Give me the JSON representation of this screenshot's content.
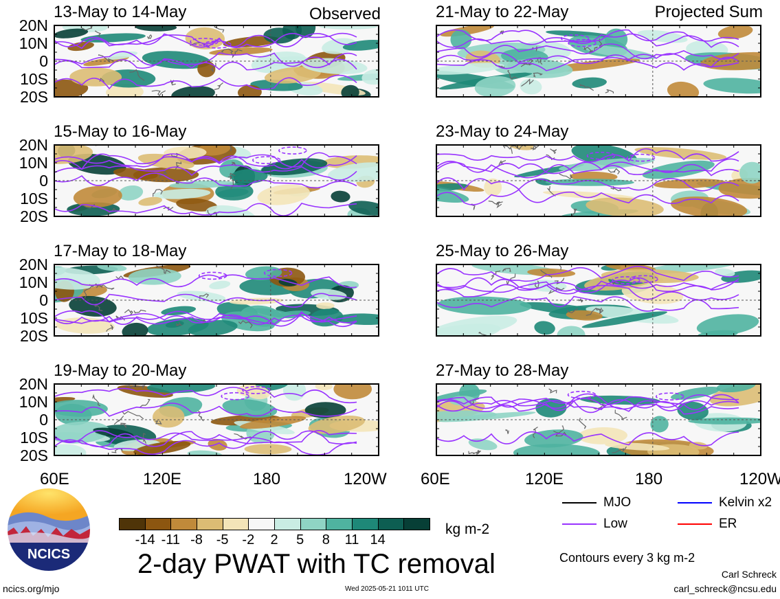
{
  "panels": [
    {
      "title": "13-May to 14-May",
      "tag": "Observed",
      "seed": 3
    },
    {
      "title": "15-May to 16-May",
      "tag": "",
      "seed": 7
    },
    {
      "title": "17-May to 18-May",
      "tag": "",
      "seed": 11
    },
    {
      "title": "19-May to 20-May",
      "tag": "",
      "seed": 17
    },
    {
      "title": "21-May to 22-May",
      "tag": "Projected Sum",
      "seed": 23
    },
    {
      "title": "23-May to 24-May",
      "tag": "",
      "seed": 29
    },
    {
      "title": "25-May to 26-May",
      "tag": "",
      "seed": 31
    },
    {
      "title": "27-May to 28-May",
      "tag": "",
      "seed": 37
    }
  ],
  "lat_labels": [
    "20N",
    "10N",
    "0",
    "10S",
    "20S"
  ],
  "lon_labels": [
    "60E",
    "120E",
    "180",
    "120W"
  ],
  "colorbar": {
    "colors": [
      "#4f3408",
      "#8c5610",
      "#c08a3a",
      "#dcbc74",
      "#f3e4b8",
      "#f7f7f7",
      "#c9ece3",
      "#8fd4c4",
      "#4fb3a0",
      "#1e8878",
      "#0d5e52",
      "#073f36"
    ],
    "labels": [
      "-14",
      "-11",
      "-8",
      "-5",
      "-2",
      "2",
      "5",
      "8",
      "11",
      "14"
    ],
    "units": "kg m-2"
  },
  "main_title": "2-day PWAT with TC removal",
  "logo_text": "NCICS",
  "legend": {
    "items": [
      {
        "label": "MJO",
        "color": "#000000"
      },
      {
        "label": "Kelvin x2",
        "color": "#0000ff"
      },
      {
        "label": "Low",
        "color": "#9933ff"
      },
      {
        "label": "ER",
        "color": "#ff0000"
      }
    ],
    "contours_note": "Contours every 3 kg m-2"
  },
  "footer": {
    "left": "ncics.org/mjo",
    "center": "Wed 2025-05-21 1011 UTC",
    "right_name": "Carl Schreck",
    "right_email": "carl_schreck@ncsu.edu"
  }
}
